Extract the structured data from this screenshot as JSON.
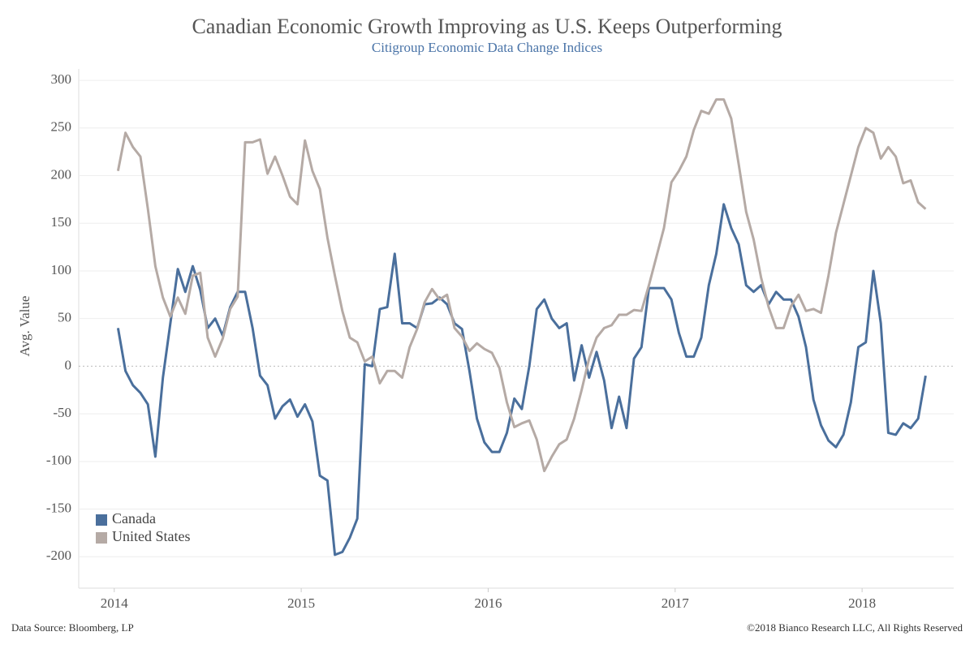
{
  "chart_data": {
    "type": "line",
    "title": "Canadian Economic Growth Improving as U.S. Keeps Outperforming",
    "subtitle": "Citigroup Economic Data Change Indices",
    "y_label": "Avg. Value",
    "source": "Data Source: Bloomberg, LP",
    "copyright": "©2018 Bianco Research LLC, All Rights Reserved",
    "x": [
      2014.02,
      2014.06,
      2014.1,
      2014.14,
      2014.18,
      2014.22,
      2014.26,
      2014.3,
      2014.34,
      2014.38,
      2014.42,
      2014.46,
      2014.5,
      2014.54,
      2014.58,
      2014.62,
      2014.66,
      2014.7,
      2014.74,
      2014.78,
      2014.82,
      2014.86,
      2014.9,
      2014.94,
      2014.98,
      2015.02,
      2015.06,
      2015.1,
      2015.14,
      2015.18,
      2015.22,
      2015.26,
      2015.3,
      2015.34,
      2015.38,
      2015.42,
      2015.46,
      2015.5,
      2015.54,
      2015.58,
      2015.62,
      2015.66,
      2015.7,
      2015.74,
      2015.78,
      2015.82,
      2015.86,
      2015.9,
      2015.94,
      2015.98,
      2016.02,
      2016.06,
      2016.1,
      2016.14,
      2016.18,
      2016.22,
      2016.26,
      2016.3,
      2016.34,
      2016.38,
      2016.42,
      2016.46,
      2016.5,
      2016.54,
      2016.58,
      2016.62,
      2016.66,
      2016.7,
      2016.74,
      2016.78,
      2016.82,
      2016.86,
      2016.9,
      2016.94,
      2016.98,
      2017.02,
      2017.06,
      2017.1,
      2017.14,
      2017.18,
      2017.22,
      2017.26,
      2017.3,
      2017.34,
      2017.38,
      2017.42,
      2017.46,
      2017.5,
      2017.54,
      2017.58,
      2017.62,
      2017.66,
      2017.7,
      2017.74,
      2017.78,
      2017.82,
      2017.86,
      2017.9,
      2017.94,
      2017.98,
      2018.02,
      2018.06,
      2018.1,
      2018.14,
      2018.18,
      2018.22,
      2018.26,
      2018.3,
      2018.34
    ],
    "series": [
      {
        "name": "Canada",
        "color": "#4a6f9c",
        "values": [
          40,
          -5,
          -20,
          -28,
          -40,
          -95,
          -12,
          45,
          102,
          78,
          105,
          80,
          40,
          50,
          32,
          62,
          78,
          78,
          40,
          -10,
          -20,
          -55,
          -42,
          -35,
          -53,
          -40,
          -58,
          -115,
          -120,
          -198,
          -195,
          -180,
          -160,
          2,
          0,
          60,
          62,
          118,
          45,
          45,
          40,
          65,
          66,
          72,
          65,
          45,
          39,
          -5,
          -55,
          -80,
          -90,
          -90,
          -70,
          -34,
          -45,
          0,
          60,
          70,
          50,
          40,
          45,
          -15,
          22,
          -12,
          15,
          -15,
          -65,
          -32,
          -65,
          8,
          20,
          82,
          82,
          82,
          70,
          35,
          10,
          10,
          30,
          85,
          118,
          170,
          145,
          128,
          85,
          78,
          85,
          65,
          78,
          70,
          70,
          52,
          20,
          -35,
          -62,
          -78,
          -85,
          -72,
          -38,
          20,
          25,
          100,
          45,
          -70,
          -72,
          -60,
          -65,
          -55,
          -10
        ]
      },
      {
        "name": "United States",
        "color": "#b5aaa5",
        "values": [
          205,
          245,
          230,
          220,
          165,
          105,
          72,
          52,
          72,
          55,
          95,
          98,
          30,
          10,
          29,
          60,
          73,
          235,
          235,
          238,
          202,
          220,
          200,
          178,
          170,
          237,
          205,
          186,
          135,
          95,
          58,
          30,
          25,
          5,
          10,
          -18,
          -5,
          -5,
          -12,
          20,
          39,
          67,
          81,
          70,
          75,
          40,
          31,
          16,
          24,
          18,
          14,
          -2,
          -38,
          -64,
          -60,
          -57,
          -77,
          -110,
          -95,
          -82,
          -77,
          -55,
          -25,
          8,
          30,
          40,
          43,
          54,
          54,
          59,
          58,
          85,
          115,
          145,
          193,
          205,
          220,
          248,
          268,
          265,
          280,
          280,
          260,
          212,
          162,
          133,
          93,
          62,
          40,
          40,
          63,
          75,
          58,
          60,
          56,
          95,
          140,
          170,
          200,
          230,
          250,
          245,
          218,
          230,
          220,
          192,
          195,
          172,
          165
        ]
      }
    ],
    "xlim": [
      2013.81,
      2018.49
    ],
    "xticks": [
      2014,
      2015,
      2016,
      2017,
      2018
    ],
    "ylim": [
      -233,
      312
    ],
    "yticks": [
      -200,
      -150,
      -100,
      -50,
      0,
      50,
      100,
      150,
      200,
      250,
      300
    ],
    "grid": true,
    "legend": "lower left"
  }
}
